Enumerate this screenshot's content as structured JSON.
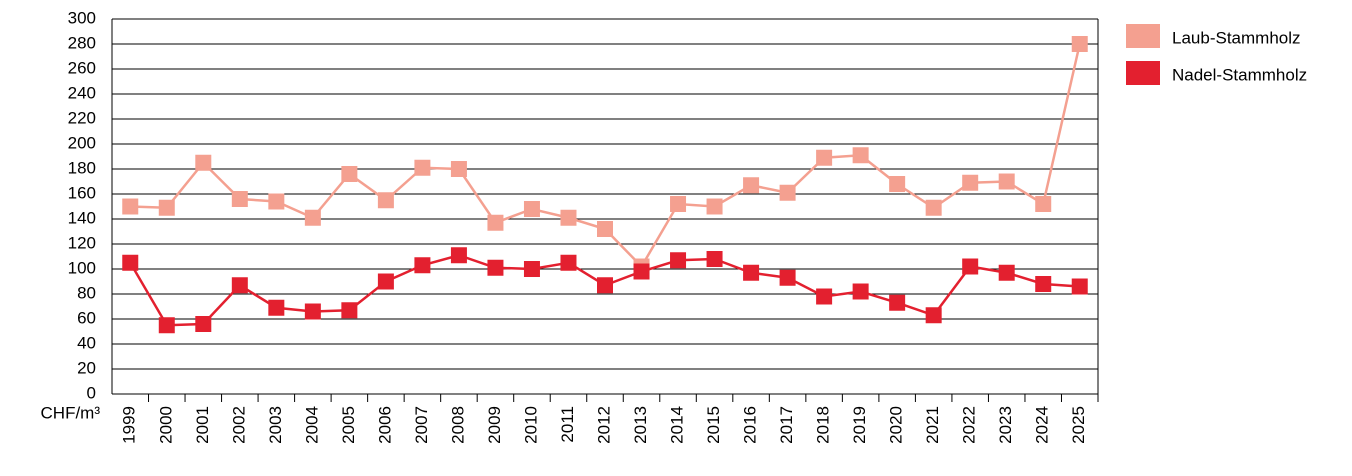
{
  "chart_data": {
    "type": "line",
    "y_unit_label": "CHF/m³",
    "categories": [
      "1999",
      "2000",
      "2001",
      "2002",
      "2003",
      "2004",
      "2005",
      "2006",
      "2007",
      "2008",
      "2009",
      "2010",
      "2011",
      "2012",
      "2013",
      "2014",
      "2015",
      "2016",
      "2017",
      "2018",
      "2019",
      "2020",
      "2021",
      "2022",
      "2023",
      "2024",
      "2025"
    ],
    "series": [
      {
        "name": "Laub-Stammholz",
        "color": "#f4a090",
        "values": [
          150,
          149,
          185,
          156,
          154,
          141,
          176,
          155,
          181,
          180,
          137,
          148,
          141,
          132,
          102,
          152,
          150,
          167,
          161,
          189,
          191,
          168,
          149,
          169,
          170,
          152,
          280
        ]
      },
      {
        "name": "Nadel-Stammholz",
        "color": "#e3202f",
        "values": [
          105,
          55,
          56,
          87,
          69,
          66,
          67,
          90,
          103,
          111,
          101,
          100,
          105,
          87,
          98,
          107,
          108,
          97,
          93,
          78,
          82,
          73,
          63,
          102,
          97,
          88,
          86
        ]
      }
    ],
    "ylim": [
      0,
      300
    ],
    "yticks": [
      0,
      20,
      40,
      60,
      80,
      100,
      120,
      140,
      160,
      180,
      200,
      220,
      240,
      260,
      280,
      300
    ],
    "grid": true,
    "legend": "right"
  }
}
